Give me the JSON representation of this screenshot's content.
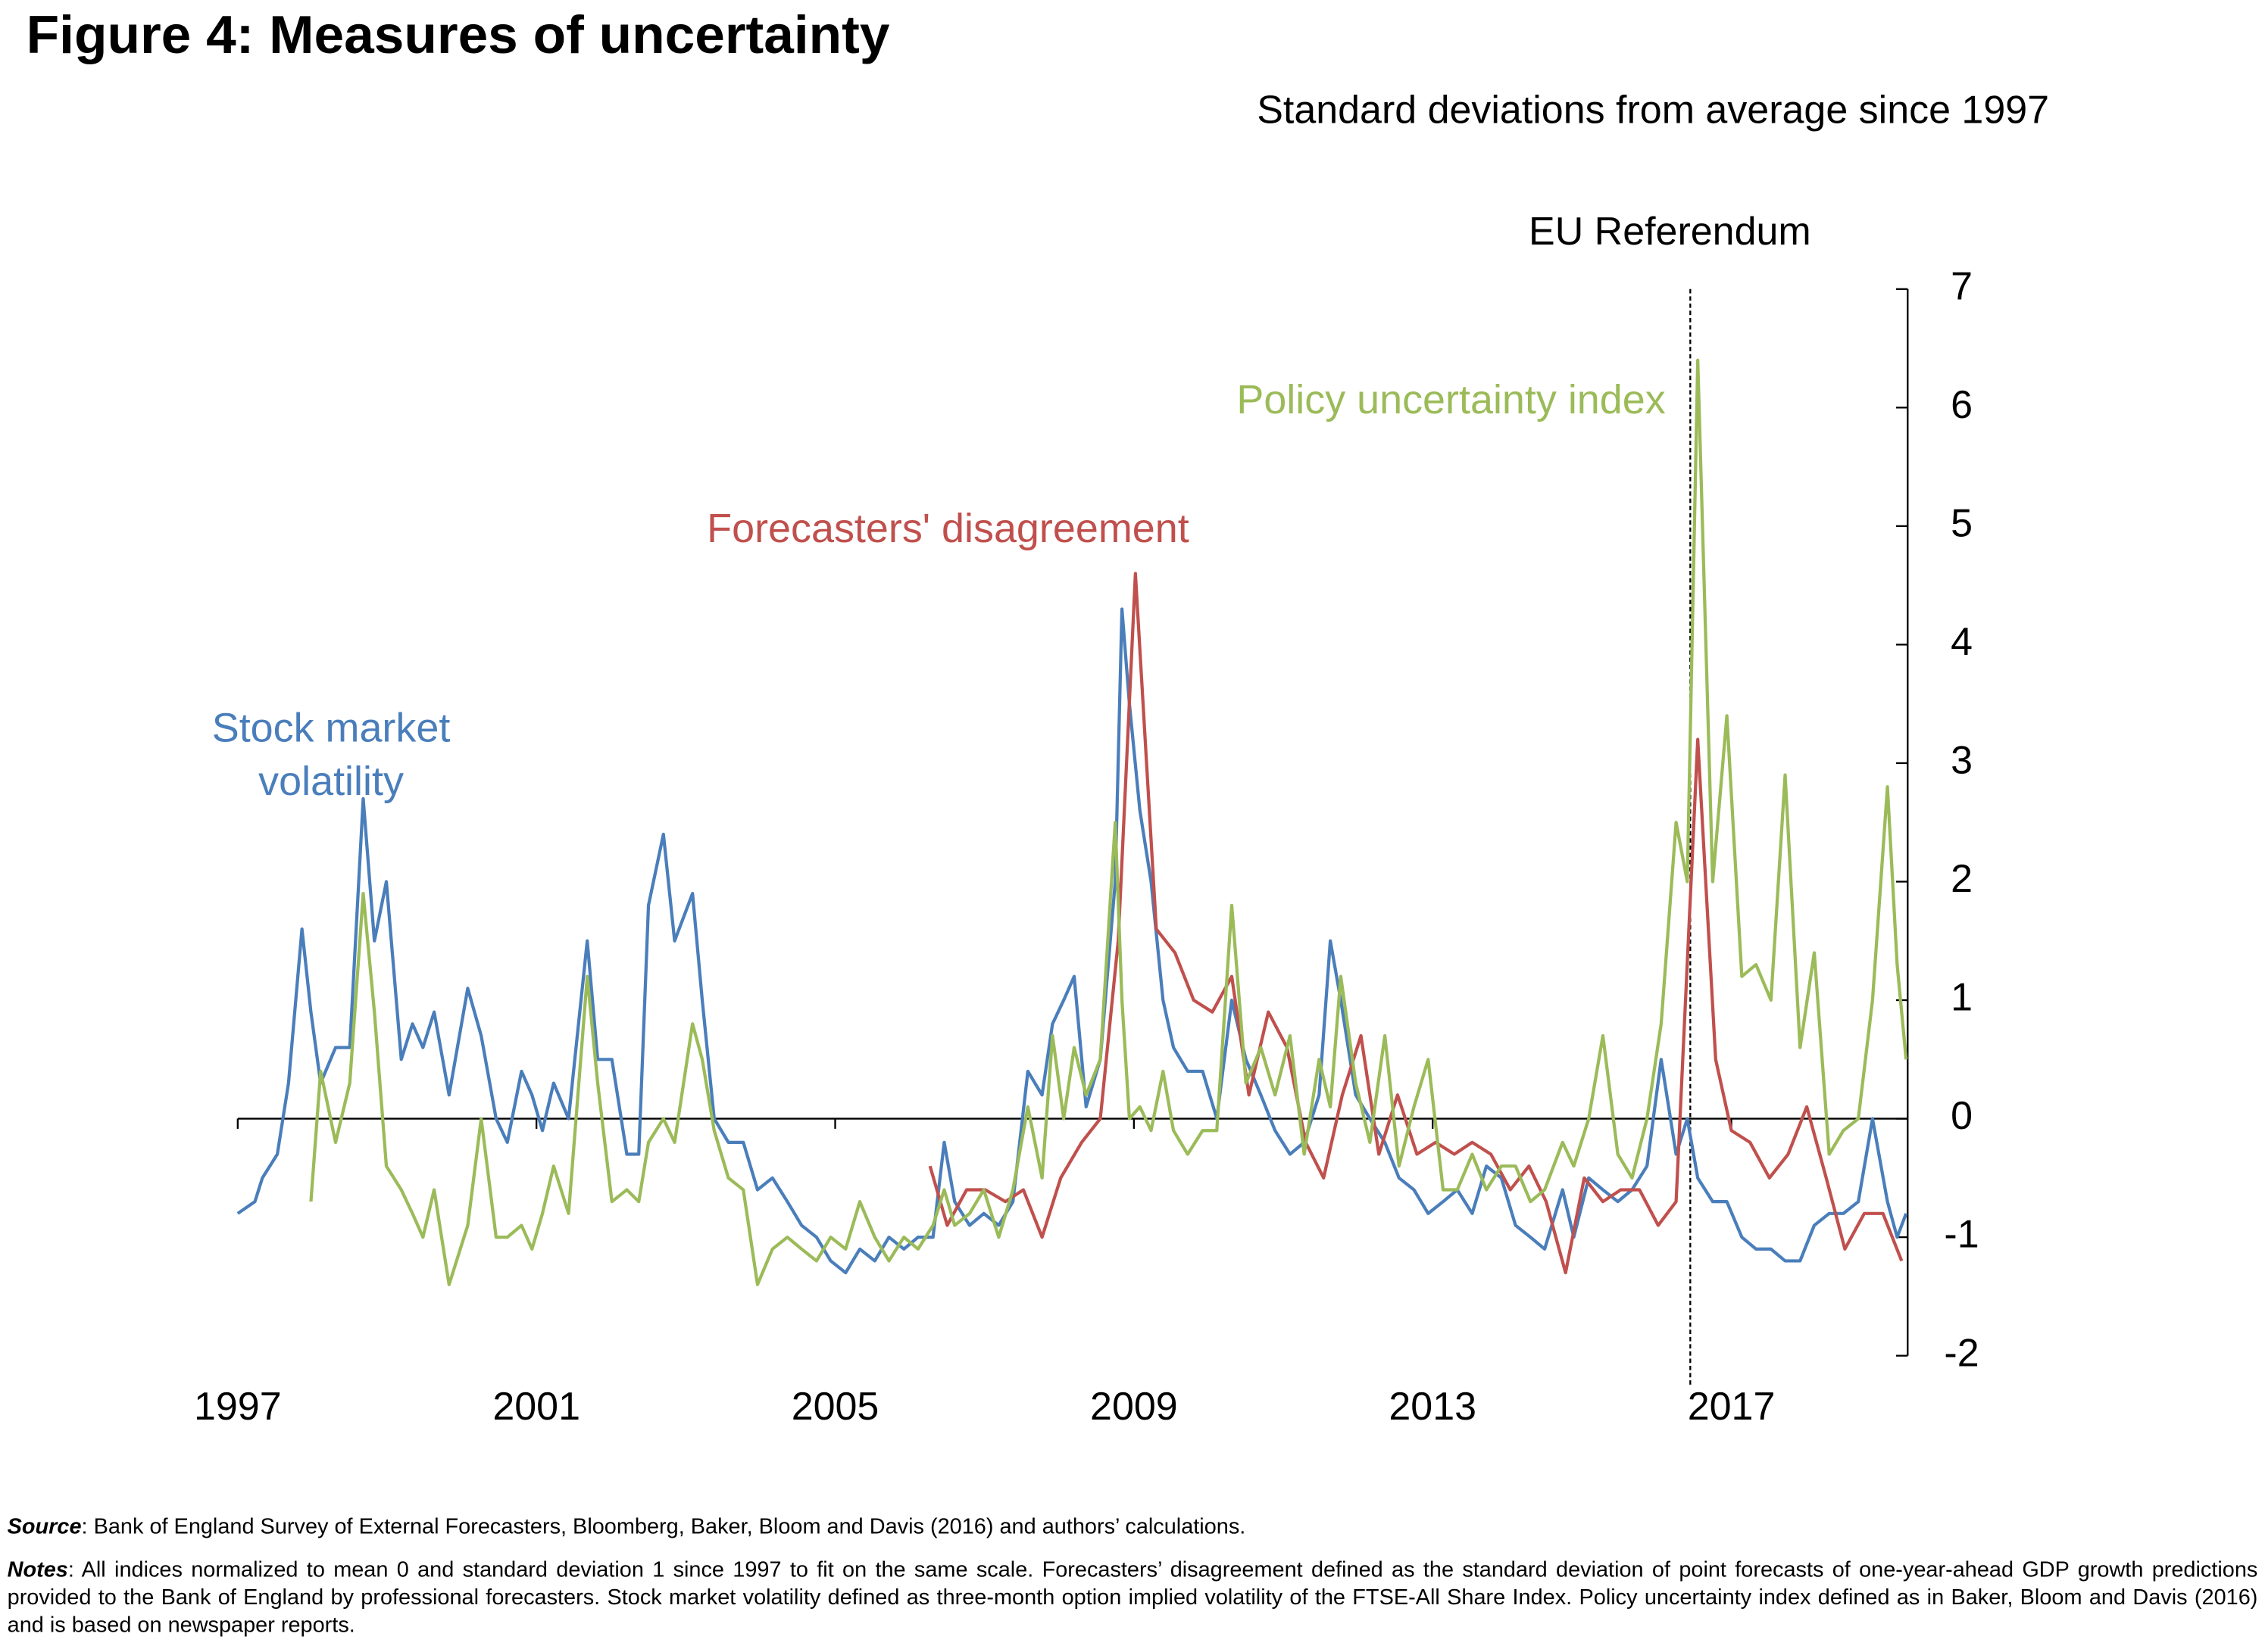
{
  "chart_data": {
    "type": "line",
    "title": "Figure 4: Measures of uncertainty",
    "subtitle": "Standard deviations from average since 1997",
    "xlim": [
      1997,
      2019.4
    ],
    "xticks": [
      1997,
      2001,
      2005,
      2009,
      2013,
      2017
    ],
    "ylim": [
      -2,
      7
    ],
    "yticks": [
      -2,
      -1,
      0,
      1,
      2,
      3,
      4,
      5,
      6,
      7
    ],
    "y_axis_side": "right",
    "annotations": [
      {
        "text": "EU Referendum",
        "x": 2016.45
      }
    ],
    "series": [
      {
        "name": "Stock market volatility",
        "color": "#4a7ebb",
        "x": [
          1997.0,
          1997.23,
          1997.33,
          1997.53,
          1997.68,
          1997.86,
          1997.98,
          1998.11,
          1998.31,
          1998.5,
          1998.68,
          1998.83,
          1998.99,
          1999.19,
          1999.34,
          1999.48,
          1999.63,
          1999.83,
          2000.08,
          2000.26,
          2000.46,
          2000.61,
          2000.8,
          2000.94,
          2001.08,
          2001.23,
          2001.43,
          2001.68,
          2001.82,
          2002.01,
          2002.21,
          2002.37,
          2002.5,
          2002.7,
          2002.85,
          2003.09,
          2003.22,
          2003.38,
          2003.57,
          2003.77,
          2003.96,
          2004.16,
          2004.36,
          2004.55,
          2004.75,
          2004.94,
          2005.14,
          2005.33,
          2005.53,
          2005.72,
          2005.92,
          2006.11,
          2006.31,
          2006.46,
          2006.6,
          2006.8,
          2006.99,
          2007.19,
          2007.38,
          2007.58,
          2007.77,
          2007.91,
          2008.06,
          2008.2,
          2008.36,
          2008.55,
          2008.75,
          2008.84,
          2008.94,
          2009.08,
          2009.23,
          2009.39,
          2009.53,
          2009.72,
          2009.92,
          2010.11,
          2010.31,
          2010.5,
          2010.7,
          2010.89,
          2011.09,
          2011.28,
          2011.48,
          2011.63,
          2011.77,
          2011.97,
          2012.16,
          2012.36,
          2012.55,
          2012.75,
          2012.94,
          2013.14,
          2013.33,
          2013.53,
          2013.72,
          2013.92,
          2014.11,
          2014.31,
          2014.5,
          2014.74,
          2014.89,
          2015.09,
          2015.28,
          2015.48,
          2015.67,
          2015.87,
          2016.06,
          2016.26,
          2016.41,
          2016.55,
          2016.75,
          2016.94,
          2017.14,
          2017.33,
          2017.53,
          2017.72,
          2017.92,
          2018.11,
          2018.31,
          2018.5,
          2018.7,
          2018.89,
          2019.09,
          2019.22,
          2019.34
        ],
        "values": [
          -0.8,
          -0.7,
          -0.5,
          -0.3,
          0.3,
          1.6,
          0.9,
          0.3,
          0.6,
          0.6,
          2.7,
          1.5,
          2.0,
          0.5,
          0.8,
          0.6,
          0.9,
          0.2,
          1.1,
          0.7,
          0.0,
          -0.2,
          0.4,
          0.2,
          -0.1,
          0.3,
          0.0,
          1.5,
          0.5,
          0.5,
          -0.3,
          -0.3,
          1.8,
          2.4,
          1.5,
          1.9,
          1.0,
          0.0,
          -0.2,
          -0.2,
          -0.6,
          -0.5,
          -0.7,
          -0.9,
          -1.0,
          -1.2,
          -1.3,
          -1.1,
          -1.2,
          -1.0,
          -1.1,
          -1.0,
          -1.0,
          -0.2,
          -0.7,
          -0.9,
          -0.8,
          -0.9,
          -0.7,
          0.4,
          0.2,
          0.8,
          1.0,
          1.2,
          0.1,
          0.5,
          2.0,
          4.3,
          3.5,
          2.6,
          2.0,
          1.0,
          0.6,
          0.4,
          0.4,
          0.0,
          1.0,
          0.5,
          0.2,
          -0.1,
          -0.3,
          -0.2,
          0.2,
          1.5,
          1.0,
          0.2,
          0.0,
          -0.2,
          -0.5,
          -0.6,
          -0.8,
          -0.7,
          -0.6,
          -0.8,
          -0.4,
          -0.5,
          -0.9,
          -1.0,
          -1.1,
          -0.6,
          -1.0,
          -0.5,
          -0.6,
          -0.7,
          -0.6,
          -0.4,
          0.5,
          -0.3,
          0.0,
          -0.5,
          -0.7,
          -0.7,
          -1.0,
          -1.1,
          -1.1,
          -1.2,
          -1.2,
          -0.9,
          -0.8,
          -0.8,
          -0.7,
          0.0,
          -0.7,
          -1.0,
          -0.8
        ]
      },
      {
        "name": "Forecasters' disagreement",
        "color": "#c0504d",
        "x": [
          2006.27,
          2006.5,
          2006.76,
          2007.01,
          2007.28,
          2007.52,
          2007.77,
          2008.02,
          2008.3,
          2008.55,
          2008.79,
          2009.02,
          2009.3,
          2009.55,
          2009.8,
          2010.05,
          2010.31,
          2010.54,
          2010.8,
          2011.05,
          2011.3,
          2011.54,
          2011.79,
          2012.04,
          2012.28,
          2012.53,
          2012.79,
          2013.04,
          2013.29,
          2013.53,
          2013.78,
          2014.04,
          2014.29,
          2014.52,
          2014.78,
          2015.03,
          2015.28,
          2015.52,
          2015.77,
          2016.02,
          2016.26,
          2016.55,
          2016.79,
          2017.0,
          2017.25,
          2017.51,
          2017.76,
          2018.01,
          2018.27,
          2018.52,
          2018.78,
          2019.03,
          2019.28
        ],
        "values": [
          -0.4,
          -0.9,
          -0.6,
          -0.6,
          -0.7,
          -0.6,
          -1.0,
          -0.5,
          -0.2,
          0.0,
          1.5,
          4.6,
          1.6,
          1.4,
          1.0,
          0.9,
          1.2,
          0.2,
          0.9,
          0.6,
          -0.2,
          -0.5,
          0.2,
          0.7,
          -0.3,
          0.2,
          -0.3,
          -0.2,
          -0.3,
          -0.2,
          -0.3,
          -0.6,
          -0.4,
          -0.7,
          -1.3,
          -0.5,
          -0.7,
          -0.6,
          -0.6,
          -0.9,
          -0.7,
          3.2,
          0.5,
          -0.1,
          -0.2,
          -0.5,
          -0.3,
          0.1,
          -0.5,
          -1.1,
          -0.8,
          -0.8,
          -1.2
        ]
      },
      {
        "name": "Policy uncertainty index",
        "color": "#9bbb59",
        "x": [
          1997.0,
          1997.23,
          1997.33,
          1997.53,
          1997.68,
          1997.86,
          1997.98,
          1998.11,
          1998.31,
          1998.5,
          1998.68,
          1998.83,
          1998.99,
          1999.19,
          1999.34,
          1999.48,
          1999.63,
          1999.83,
          2000.08,
          2000.26,
          2000.46,
          2000.61,
          2000.8,
          2000.94,
          2001.08,
          2001.23,
          2001.43,
          2001.68,
          2001.82,
          2002.01,
          2002.21,
          2002.37,
          2002.5,
          2002.7,
          2002.85,
          2003.09,
          2003.22,
          2003.38,
          2003.57,
          2003.77,
          2003.96,
          2004.16,
          2004.36,
          2004.55,
          2004.75,
          2004.94,
          2005.14,
          2005.33,
          2005.53,
          2005.72,
          2005.92,
          2006.11,
          2006.31,
          2006.46,
          2006.6,
          2006.8,
          2006.99,
          2007.19,
          2007.38,
          2007.58,
          2007.77,
          2007.91,
          2008.06,
          2008.2,
          2008.36,
          2008.55,
          2008.75,
          2008.84,
          2008.94,
          2009.08,
          2009.23,
          2009.39,
          2009.53,
          2009.72,
          2009.92,
          2010.11,
          2010.31,
          2010.5,
          2010.7,
          2010.89,
          2011.09,
          2011.28,
          2011.48,
          2011.63,
          2011.77,
          2011.97,
          2012.16,
          2012.36,
          2012.55,
          2012.75,
          2012.94,
          2013.14,
          2013.33,
          2013.53,
          2013.72,
          2013.92,
          2014.11,
          2014.31,
          2014.5,
          2014.74,
          2014.89,
          2015.09,
          2015.28,
          2015.48,
          2015.67,
          2015.87,
          2016.06,
          2016.26,
          2016.41,
          2016.55,
          2016.75,
          2016.94,
          2017.14,
          2017.33,
          2017.53,
          2017.72,
          2017.92,
          2018.11,
          2018.31,
          2018.5,
          2018.7,
          2018.89,
          2019.09,
          2019.22,
          2019.34
        ],
        "values": [
          null,
          null,
          null,
          null,
          null,
          null,
          -0.7,
          0.4,
          -0.2,
          0.3,
          1.9,
          0.9,
          -0.4,
          -0.6,
          -0.8,
          -1.0,
          -0.6,
          -1.4,
          -0.9,
          0.0,
          -1.0,
          -1.0,
          -0.9,
          -1.1,
          -0.8,
          -0.4,
          -0.8,
          1.2,
          0.3,
          -0.7,
          -0.6,
          -0.7,
          -0.2,
          0.0,
          -0.2,
          0.8,
          0.5,
          -0.1,
          -0.5,
          -0.6,
          -1.4,
          -1.1,
          -1.0,
          -1.1,
          -1.2,
          -1.0,
          -1.1,
          -0.7,
          -1.0,
          -1.2,
          -1.0,
          -1.1,
          -0.9,
          -0.6,
          -0.9,
          -0.8,
          -0.6,
          -1.0,
          -0.6,
          0.1,
          -0.5,
          0.7,
          0.0,
          0.6,
          0.2,
          0.5,
          2.5,
          1.0,
          0.0,
          0.1,
          -0.1,
          0.4,
          -0.1,
          -0.3,
          -0.1,
          -0.1,
          1.8,
          0.3,
          0.6,
          0.2,
          0.7,
          -0.3,
          0.5,
          0.1,
          1.2,
          0.3,
          -0.2,
          0.7,
          -0.4,
          0.1,
          0.5,
          -0.6,
          -0.6,
          -0.3,
          -0.6,
          -0.4,
          -0.4,
          -0.7,
          -0.6,
          -0.2,
          -0.4,
          0.0,
          0.7,
          -0.3,
          -0.5,
          0.0,
          0.8,
          2.5,
          2.0,
          6.4,
          2.0,
          3.4,
          1.2,
          1.3,
          1.0,
          2.9,
          0.6,
          1.4,
          -0.3,
          -0.1,
          0.0,
          1.0,
          2.8,
          1.3,
          0.5
        ]
      }
    ],
    "source": {
      "label": "Source",
      "text": ": Bank of England Survey of External Forecasters, Bloomberg, Baker, Bloom and Davis (2016) and authors’ calculations."
    },
    "notes": {
      "label": "Notes",
      "text": ": All indices normalized to mean 0 and standard deviation 1 since 1997 to fit on the same scale. Forecasters’ disagreement defined as the standard deviation of point forecasts of one-year-ahead GDP growth predictions provided to the Bank of England by professional forecasters. Stock market volatility defined as three-month option implied volatility of the FTSE-All Share Index. Policy uncertainty index defined as in Baker, Bloom and Davis (2016) and is based on newspaper reports."
    }
  }
}
